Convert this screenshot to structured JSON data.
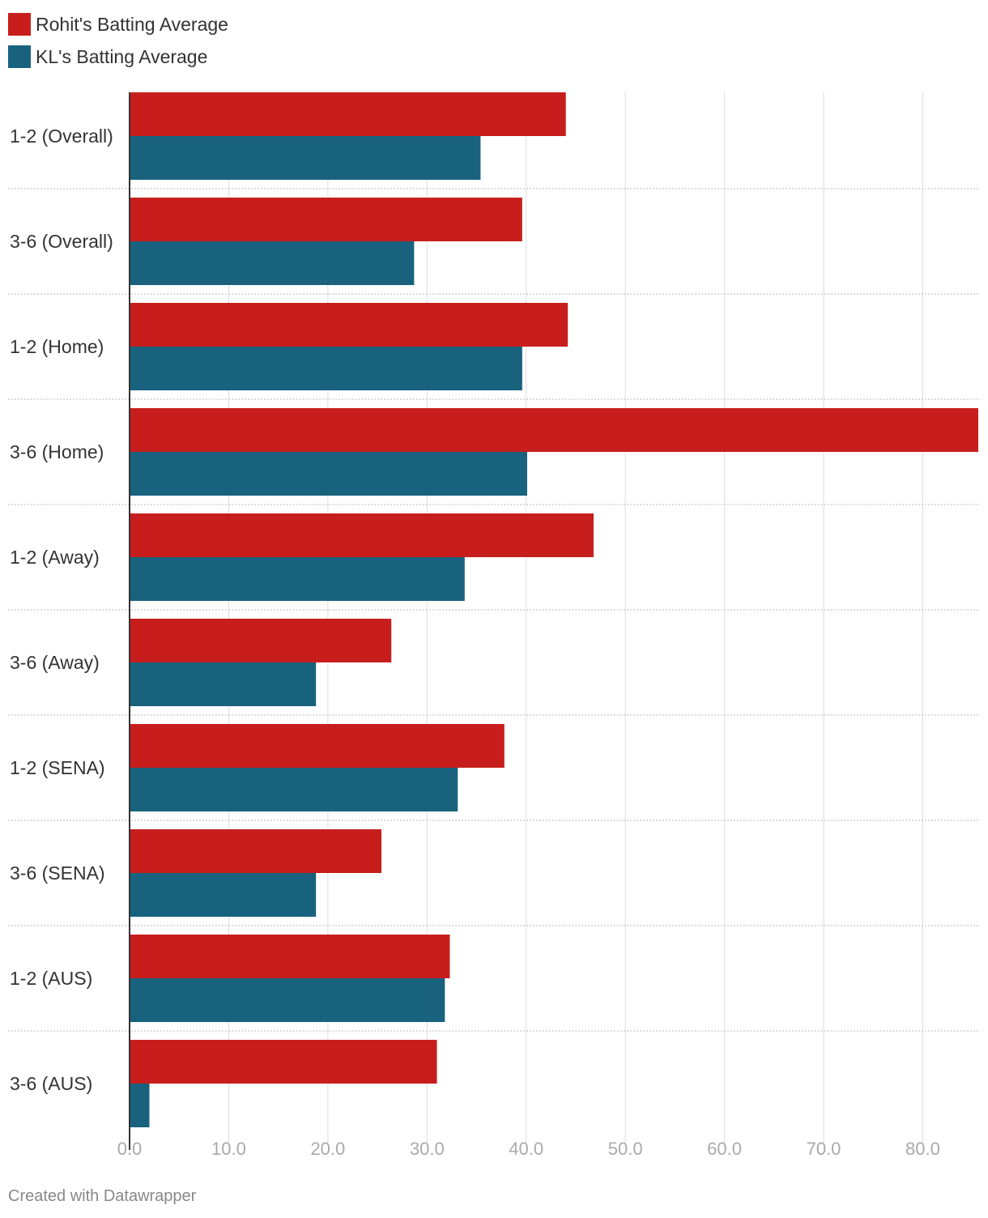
{
  "chart_data": {
    "type": "bar",
    "orientation": "horizontal",
    "categories": [
      "1-2 (Overall)",
      "3-6 (Overall)",
      "1-2 (Home)",
      "3-6 (Home)",
      "1-2 (Away)",
      "3-6 (Away)",
      "1-2 (SENA)",
      "3-6 (SENA)",
      "1-2 (AUS)",
      "3-6 (AUS)"
    ],
    "series": [
      {
        "name": "Rohit's Batting Average",
        "color": "#c71e1d",
        "values": [
          44.0,
          39.6,
          44.2,
          85.6,
          46.8,
          26.4,
          37.8,
          25.4,
          32.3,
          31.0
        ]
      },
      {
        "name": "KL's Batting Average",
        "color": "#18627e",
        "values": [
          35.4,
          28.7,
          39.6,
          40.1,
          33.8,
          18.8,
          33.1,
          18.8,
          31.8,
          2.0
        ]
      }
    ],
    "xlim": [
      0,
      85.6
    ],
    "xticks": [
      0,
      10,
      20,
      30,
      40,
      50,
      60,
      70,
      80
    ],
    "xtick_labels": [
      "0.0",
      "10.0",
      "20.0",
      "30.0",
      "40.0",
      "50.0",
      "60.0",
      "70.0",
      "80.0"
    ],
    "grid": true,
    "legend": "top-left"
  },
  "footer": {
    "credit": "Created with Datawrapper"
  }
}
